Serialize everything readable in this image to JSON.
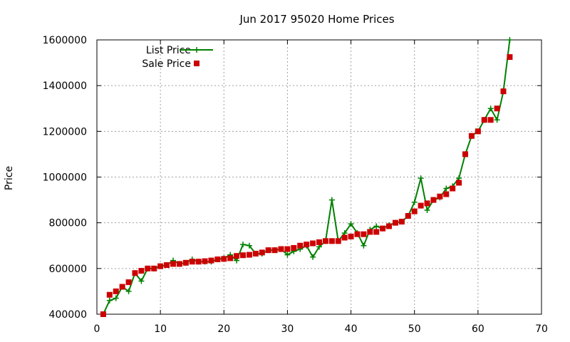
{
  "chart_data": {
    "type": "line",
    "title": "Jun 2017 95020 Home Prices",
    "xlabel": "",
    "ylabel": "Price",
    "xlim": [
      0,
      70
    ],
    "ylim": [
      400000,
      1600000
    ],
    "xticks": [
      "0",
      "10",
      "20",
      "30",
      "40",
      "50",
      "60",
      "70"
    ],
    "yticks": [
      "400000",
      "600000",
      "800000",
      "1000000",
      "1200000",
      "1400000",
      "1600000"
    ],
    "grid": true,
    "legend_position": "top-left",
    "series": [
      {
        "name": "List Price",
        "style": "line+cross",
        "color": "#008000",
        "x": [
          1,
          2,
          3,
          4,
          5,
          6,
          7,
          8,
          9,
          10,
          11,
          12,
          13,
          14,
          15,
          16,
          17,
          18,
          19,
          20,
          21,
          22,
          23,
          24,
          25,
          26,
          27,
          28,
          29,
          30,
          31,
          32,
          33,
          34,
          35,
          36,
          37,
          38,
          39,
          40,
          41,
          42,
          43,
          44,
          45,
          46,
          47,
          48,
          49,
          50,
          51,
          52,
          53,
          54,
          55,
          56,
          57,
          58,
          59,
          60,
          61,
          62,
          63,
          64,
          65
        ],
        "y": [
          400000,
          460000,
          470000,
          520000,
          500000,
          580000,
          545000,
          600000,
          600000,
          610000,
          615000,
          635000,
          620000,
          625000,
          640000,
          630000,
          630000,
          630000,
          640000,
          645000,
          660000,
          635000,
          705000,
          700000,
          665000,
          665000,
          680000,
          680000,
          685000,
          660000,
          675000,
          685000,
          700000,
          650000,
          695000,
          720000,
          900000,
          720000,
          755000,
          795000,
          755000,
          700000,
          770000,
          785000,
          775000,
          790000,
          800000,
          805000,
          830000,
          890000,
          995000,
          855000,
          900000,
          910000,
          950000,
          960000,
          995000,
          1100000,
          1180000,
          1200000,
          1250000,
          1300000,
          1250000,
          1375000,
          1600000
        ]
      },
      {
        "name": "Sale Price",
        "style": "square",
        "color": "#cc0000",
        "x": [
          1,
          2,
          3,
          4,
          5,
          6,
          7,
          8,
          9,
          10,
          11,
          12,
          13,
          14,
          15,
          16,
          17,
          18,
          19,
          20,
          21,
          22,
          23,
          24,
          25,
          26,
          27,
          28,
          29,
          30,
          31,
          32,
          33,
          34,
          35,
          36,
          37,
          38,
          39,
          40,
          41,
          42,
          43,
          44,
          45,
          46,
          47,
          48,
          49,
          50,
          51,
          52,
          53,
          54,
          55,
          56,
          57,
          58,
          59,
          60,
          61,
          62,
          63,
          64,
          65
        ],
        "y": [
          400000,
          485000,
          500000,
          520000,
          540000,
          580000,
          590000,
          600000,
          600000,
          610000,
          615000,
          620000,
          620000,
          625000,
          630000,
          630000,
          632000,
          635000,
          640000,
          642000,
          645000,
          655000,
          658000,
          660000,
          665000,
          670000,
          680000,
          680000,
          685000,
          685000,
          690000,
          700000,
          705000,
          710000,
          715000,
          720000,
          720000,
          720000,
          735000,
          740000,
          750000,
          750000,
          760000,
          760000,
          775000,
          785000,
          800000,
          805000,
          830000,
          850000,
          875000,
          885000,
          900000,
          915000,
          925000,
          950000,
          975000,
          1100000,
          1180000,
          1200000,
          1250000,
          1250000,
          1300000,
          1375000,
          1525000
        ]
      }
    ]
  }
}
